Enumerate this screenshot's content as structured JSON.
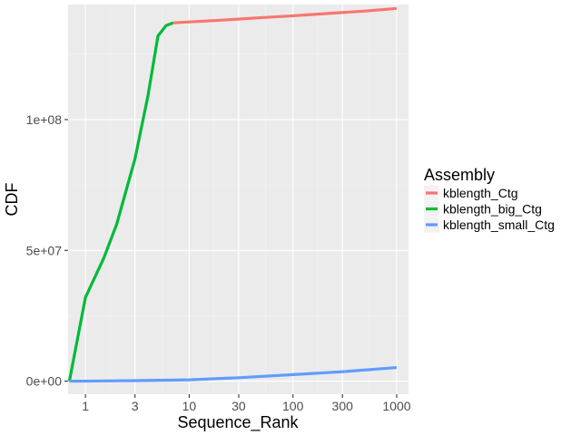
{
  "chart_data": {
    "type": "line",
    "xlabel": "Sequence_Rank",
    "ylabel": "CDF",
    "x_scale": "log10",
    "xlim": [
      0.68,
      1300
    ],
    "ylim": [
      -5000000,
      144000000
    ],
    "x_ticks": [
      1,
      3,
      10,
      30,
      100,
      300,
      1000
    ],
    "x_tick_labels": [
      "1",
      "3",
      "10",
      "30",
      "100",
      "300",
      "1000"
    ],
    "y_ticks": [
      0,
      50000000,
      100000000
    ],
    "y_tick_labels": [
      "0e+00",
      "5e+07",
      "1e+08"
    ],
    "grid": true,
    "legend": {
      "title": "Assembly",
      "position": "right"
    },
    "series": [
      {
        "name": "kblength_Ctg",
        "color": "#F8766D",
        "x": [
          7,
          20,
          50,
          100,
          200,
          500,
          1000
        ],
        "y": [
          137000000,
          138000000,
          139000000,
          139700000,
          140500000,
          141500000,
          142500000
        ]
      },
      {
        "name": "kblength_big_Ctg",
        "color": "#00BA38",
        "x": [
          0.7,
          1,
          1.5,
          2,
          3,
          4,
          5,
          6,
          7
        ],
        "y": [
          0,
          32000000,
          47000000,
          60000000,
          85000000,
          109000000,
          132000000,
          136000000,
          137000000
        ]
      },
      {
        "name": "kblength_small_Ctg",
        "color": "#619CFF",
        "x": [
          0.7,
          1,
          3,
          10,
          30,
          100,
          300,
          1000
        ],
        "y": [
          0,
          10000,
          200000,
          500000,
          1300000,
          2500000,
          3600000,
          5200000
        ]
      }
    ]
  }
}
